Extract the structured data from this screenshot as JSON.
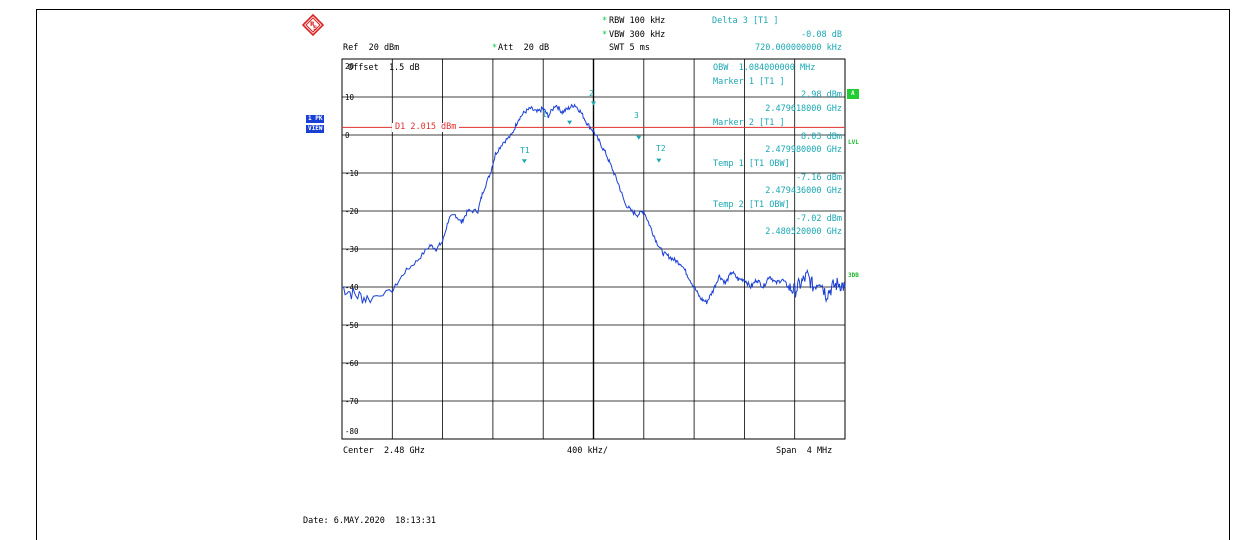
{
  "header": {
    "rbw": "RBW 100 kHz",
    "vbw": "VBW 300 kHz",
    "swt": "SWT 5 ms",
    "ref": "Ref  20 dBm",
    "att": "Att  20 dB",
    "offset": "Offset  1.5 dB",
    "delta_title": "Delta 3 [T1 ]",
    "delta_value": "-0.08 dB",
    "delta_freq": "720.000000000 kHz"
  },
  "readouts": [
    "OBW  1.084000000 MHz",
    "Marker 1 [T1 ]",
    "2.98 dBm",
    "2.479618000 GHz",
    "Marker 2 [T1 ]",
    "8.03 dBm",
    "2.479980000 GHz",
    "Temp 1 [T1 OBW]",
    "-7.16 dBm",
    "2.479436000 GHz",
    "Temp 2 [T1 OBW]",
    "-7.02 dBm",
    "2.480520000 GHz"
  ],
  "side_tags": {
    "trace_mode": "1 PK",
    "trace_view": "VIEW",
    "a": "A",
    "lvl": "LVL",
    "db3": "3DB"
  },
  "display_line": "D1 2.015 dBm",
  "footer": {
    "center": "Center  2.48 GHz",
    "div": "400 kHz/",
    "span": "Span  4 MHz",
    "date": "Date: 6.MAY.2020  18:13:31"
  },
  "markers": {
    "m1": "1",
    "m2": "2",
    "m3": "3",
    "t1": "T1",
    "t2": "T2"
  },
  "colors": {
    "trace": "#1a3fd4",
    "grid": "#000000",
    "display_line": "#e03030",
    "marker": "#1aa8b4",
    "tag_blue": "#1a3fd4",
    "tag_green": "#22cc33"
  },
  "chart_data": {
    "type": "line",
    "title": "",
    "xlabel": "",
    "ylabel": "",
    "x_unit": "MHz offset from center 2.48 GHz",
    "xlim": [
      -2.0,
      2.0
    ],
    "ylim": [
      -80,
      20
    ],
    "y_ticks": [
      20,
      10,
      0,
      -10,
      -20,
      -30,
      -40,
      -50,
      -60,
      -70,
      -80
    ],
    "grid": true,
    "display_line_dbm": 2.015,
    "series": [
      {
        "x": [
          -2.0,
          -1.9,
          -1.8,
          -1.6,
          -1.5,
          -1.4,
          -1.3,
          -1.25,
          -1.2,
          -1.15,
          -1.1,
          -1.05,
          -1.0,
          -0.92,
          -0.88,
          -0.82,
          -0.78,
          -0.72,
          -0.65,
          -0.6,
          -0.55,
          -0.5,
          -0.45,
          -0.4,
          -0.36,
          -0.3,
          -0.25,
          -0.2,
          -0.15,
          -0.1,
          -0.05,
          0.0,
          0.05,
          0.1,
          0.15,
          0.2,
          0.25,
          0.3,
          0.35,
          0.4,
          0.45,
          0.5,
          0.55,
          0.6,
          0.65,
          0.7,
          0.75,
          0.8,
          0.85,
          0.9,
          0.95,
          1.0,
          1.05,
          1.1,
          1.15,
          1.2,
          1.25,
          1.3,
          1.35,
          1.4,
          1.45,
          1.5,
          1.55,
          1.6,
          1.65,
          1.7,
          1.75,
          1.8,
          1.85,
          1.9,
          1.95,
          2.0
        ],
        "y": [
          -40,
          -42,
          -43,
          -41,
          -36,
          -33,
          -29,
          -30,
          -28,
          -22,
          -21,
          -23,
          -20,
          -20,
          -15,
          -10,
          -5,
          -2,
          0,
          4,
          6,
          7,
          6,
          7,
          5,
          8,
          6,
          7,
          8,
          6,
          3,
          1,
          -2,
          -5,
          -9,
          -13,
          -18,
          -20,
          -21,
          -20,
          -24,
          -28,
          -31,
          -32,
          -33,
          -34,
          -37,
          -40,
          -43,
          -44,
          -41,
          -37,
          -39,
          -36,
          -38,
          -38,
          -40,
          -38,
          -40,
          -37,
          -39,
          -38,
          -40,
          -41,
          -39,
          -37,
          -40,
          -38,
          -42,
          -40,
          -39,
          -40
        ]
      }
    ]
  }
}
